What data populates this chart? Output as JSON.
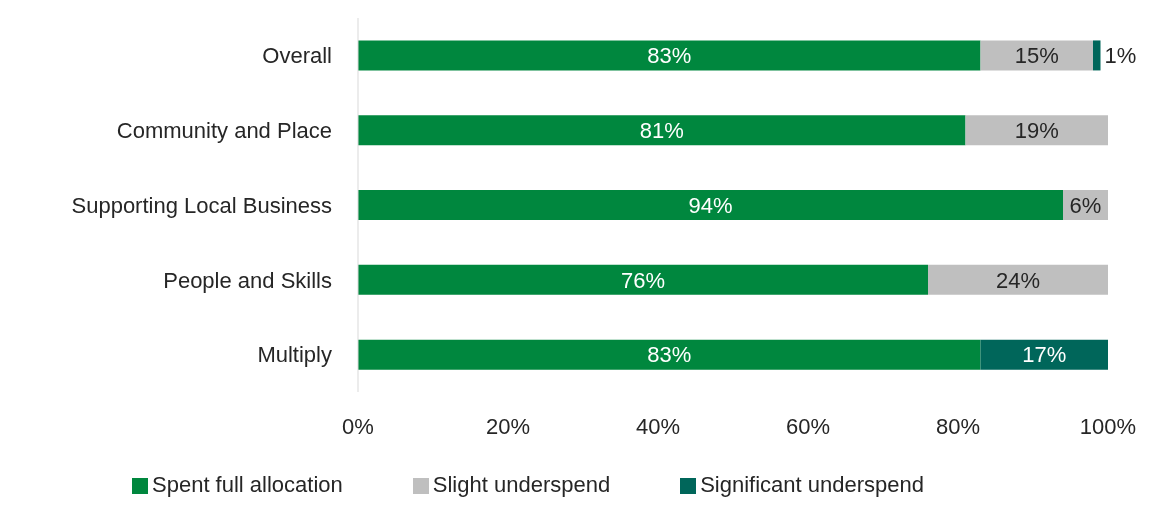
{
  "chart_data": {
    "type": "bar",
    "orientation": "horizontal",
    "stacked": true,
    "categories": [
      "Overall",
      "Community and Place",
      "Supporting Local Business",
      "People and Skills",
      "Multiply"
    ],
    "series": [
      {
        "name": "Spent full allocation",
        "color": "#00873e",
        "values": [
          83,
          81,
          94,
          76,
          83
        ],
        "value_labels": [
          "83%",
          "81%",
          "94%",
          "76%",
          "83%"
        ]
      },
      {
        "name": "Slight underspend",
        "color": "#bfbfbf",
        "values": [
          15,
          19,
          6,
          24,
          null
        ],
        "value_labels": [
          "15%",
          "19%",
          "6%",
          "24%",
          null
        ]
      },
      {
        "name": "Significant underspend",
        "color": "#00665a",
        "values": [
          1,
          null,
          null,
          null,
          17
        ],
        "value_labels": [
          "1%",
          null,
          null,
          null,
          "17%"
        ]
      }
    ],
    "xlim": [
      0,
      100
    ],
    "xticks": [
      {
        "value": 0,
        "label": "0%"
      },
      {
        "value": 20,
        "label": "20%"
      },
      {
        "value": 40,
        "label": "40%"
      },
      {
        "value": 60,
        "label": "60%"
      },
      {
        "value": 80,
        "label": "80%"
      },
      {
        "value": 100,
        "label": "100%"
      }
    ],
    "grid": false,
    "legend": "bottom"
  }
}
